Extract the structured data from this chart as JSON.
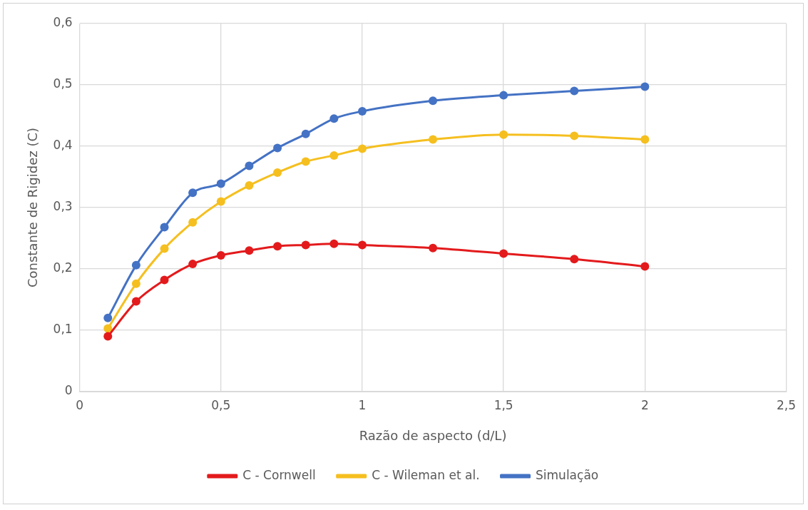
{
  "chart_data": {
    "type": "line",
    "xlabel": "Razão de aspecto (d/L)",
    "ylabel": "Constante de Rigidez (C)",
    "x": [
      0.1,
      0.2,
      0.3,
      0.4,
      0.5,
      0.6,
      0.7,
      0.8,
      0.9,
      1,
      1.25,
      1.5,
      1.75,
      2
    ],
    "series": [
      {
        "name": "C - Cornwell",
        "color": "#e31a1c",
        "values": [
          0.09,
          0.147,
          0.182,
          0.208,
          0.222,
          0.23,
          0.237,
          0.239,
          0.241,
          0.239,
          0.234,
          0.225,
          0.216,
          0.204
        ]
      },
      {
        "name": "C - Wileman et al.",
        "color": "#f5bf1f",
        "values": [
          0.103,
          0.176,
          0.233,
          0.276,
          0.31,
          0.336,
          0.357,
          0.375,
          0.385,
          0.396,
          0.411,
          0.419,
          0.417,
          0.411
        ]
      },
      {
        "name": "Simulação",
        "color": "#4472c4",
        "values": [
          0.12,
          0.206,
          0.268,
          0.324,
          0.339,
          0.368,
          0.397,
          0.42,
          0.445,
          0.457,
          0.474,
          0.483,
          0.49,
          0.497
        ]
      }
    ],
    "xlim": [
      0,
      2.5
    ],
    "xticks": [
      0,
      {
        "value": 0.5,
        "label": "0,5"
      },
      1,
      {
        "value": 1.5,
        "label": "1,5"
      },
      2,
      {
        "value": 2.5,
        "label": "2,5"
      }
    ],
    "ylim": [
      0,
      0.6
    ],
    "yticks": [
      0,
      {
        "value": 0.1,
        "label": "0,1"
      },
      {
        "value": 0.2,
        "label": "0,2"
      },
      {
        "value": 0.3,
        "label": "0,3"
      },
      {
        "value": 0.4,
        "label": "0,4"
      },
      {
        "value": 0.5,
        "label": "0,5"
      },
      {
        "value": 0.6,
        "label": "0,6"
      }
    ],
    "grid": true,
    "legend": "bottom",
    "marker": "circle",
    "line_style": "solid"
  }
}
